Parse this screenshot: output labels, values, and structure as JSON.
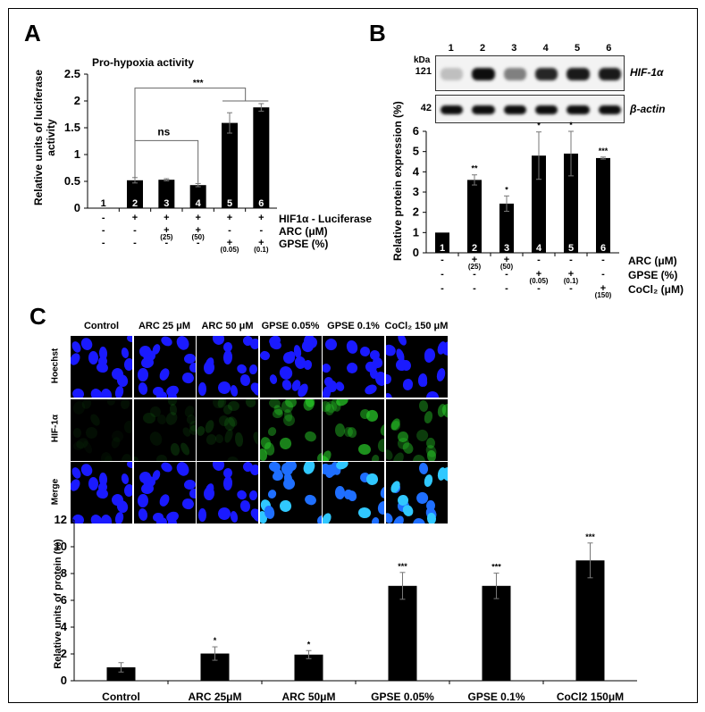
{
  "figure": {
    "panels": [
      "A",
      "B",
      "C"
    ]
  },
  "panel_a": {
    "letter": "A",
    "title": "Pro-hypoxia activity",
    "ylabel_line1": "Relative units of luciferase",
    "ylabel_line2": "activity",
    "yticks": [
      "0",
      "0.5",
      "1",
      "1.5",
      "2",
      "2.5"
    ],
    "bar_numbers": [
      "1",
      "2",
      "3",
      "4",
      "5",
      "6"
    ],
    "sig_ns": "ns",
    "sig_star": "***",
    "conditions": [
      {
        "label": "HIF1α - Luciferase",
        "marks": [
          "-",
          "+",
          "+",
          "+",
          "+",
          "+"
        ],
        "sub": [
          "",
          "",
          "",
          "",
          "",
          ""
        ]
      },
      {
        "label": "ARC (μM)",
        "marks": [
          "-",
          "-",
          "+",
          "+",
          "-",
          "-"
        ],
        "sub": [
          "",
          "",
          "(25)",
          "(50)",
          "",
          ""
        ]
      },
      {
        "label": "GPSE (%)",
        "marks": [
          "-",
          "-",
          "-",
          "-",
          "+",
          "+"
        ],
        "sub": [
          "",
          "",
          "",
          "",
          "(0.05)",
          "(0.1)"
        ]
      }
    ]
  },
  "panel_b": {
    "letter": "B",
    "lanes": [
      "1",
      "2",
      "3",
      "4",
      "5",
      "6"
    ],
    "kda_label": "kDa",
    "blots": [
      {
        "kda": "121",
        "name": "HIF-1α"
      },
      {
        "kda": "42",
        "name": "β-actin"
      }
    ],
    "ylabel": "Relative protein expression (%)",
    "yticks": [
      "0",
      "1",
      "2",
      "3",
      "4",
      "5",
      "6"
    ],
    "bar_numbers": [
      "1",
      "2",
      "3",
      "4",
      "5",
      "6"
    ],
    "sig": [
      "",
      "**",
      "*",
      "*",
      "*",
      "***"
    ],
    "conditions": [
      {
        "label": "ARC (μM)",
        "marks": [
          "-",
          "+",
          "+",
          "-",
          "-",
          "-"
        ],
        "sub": [
          "",
          "(25)",
          "(50)",
          "",
          "",
          ""
        ]
      },
      {
        "label": "GPSE (%)",
        "marks": [
          "-",
          "-",
          "-",
          "+",
          "+",
          "-"
        ],
        "sub": [
          "",
          "",
          "",
          "(0.05)",
          "(0.1)",
          ""
        ]
      },
      {
        "label": "CoCl₂ (μM)",
        "marks": [
          "-",
          "-",
          "-",
          "-",
          "-",
          "+"
        ],
        "sub": [
          "",
          "",
          "",
          "",
          "",
          "(150)"
        ]
      }
    ]
  },
  "panel_c": {
    "letter": "C",
    "columns": [
      "Control",
      "ARC 25 μM",
      "ARC 50 μM",
      "GPSE 0.05%",
      "GPSE 0.1%",
      "CoCl₂ 150 μM"
    ],
    "rows": [
      "Hoechst",
      "HIF-1α",
      "Merge"
    ],
    "ylabel": "Relative units of protein (%)",
    "yticks": [
      "0",
      "2",
      "4",
      "6",
      "8",
      "10",
      "12"
    ],
    "sig": [
      "",
      "*",
      "*",
      "***",
      "***",
      "***"
    ],
    "colors": {
      "hoechst": "#1a1aff",
      "hif": "#22c022",
      "merge": "#1f6fff"
    }
  },
  "chart_data": [
    {
      "type": "bar",
      "title": "Pro-hypoxia activity",
      "xlabel": "",
      "ylabel": "Relative units of luciferase activity",
      "categories": [
        "1",
        "2",
        "3",
        "4",
        "5",
        "6"
      ],
      "values": [
        0,
        0.52,
        0.53,
        0.43,
        1.59,
        1.88
      ],
      "errors": [
        0,
        0.05,
        0.02,
        0.03,
        0.19,
        0.07
      ],
      "ylim": [
        0,
        2.5
      ],
      "annotations": [
        "ns (2 vs 4)",
        "*** (2 vs 5,6)"
      ],
      "grid": false
    },
    {
      "type": "bar",
      "title": "",
      "xlabel": "",
      "ylabel": "Relative protein expression (%)",
      "categories": [
        "1",
        "2",
        "3",
        "4",
        "5",
        "6"
      ],
      "values": [
        1.0,
        3.6,
        2.43,
        4.8,
        4.9,
        4.68
      ],
      "errors": [
        0,
        0.25,
        0.38,
        1.17,
        1.1,
        0.05
      ],
      "significance": [
        "",
        "**",
        "*",
        "*",
        "*",
        "***"
      ],
      "ylim": [
        0,
        6
      ],
      "grid": false
    },
    {
      "type": "bar",
      "title": "",
      "xlabel": "",
      "ylabel": "Relative units of protein (%)",
      "categories": [
        "Control",
        "ARC 25μM",
        "ARC 50μM",
        "GPSE 0.05%",
        "GPSE 0.1%",
        "CoCl2 150μM"
      ],
      "values": [
        1.0,
        2.03,
        1.95,
        7.08,
        7.08,
        8.98
      ],
      "errors": [
        0.35,
        0.5,
        0.3,
        1.0,
        0.95,
        1.3
      ],
      "significance": [
        "",
        "*",
        "*",
        "***",
        "***",
        "***"
      ],
      "ylim": [
        0,
        12
      ],
      "grid": false
    }
  ]
}
